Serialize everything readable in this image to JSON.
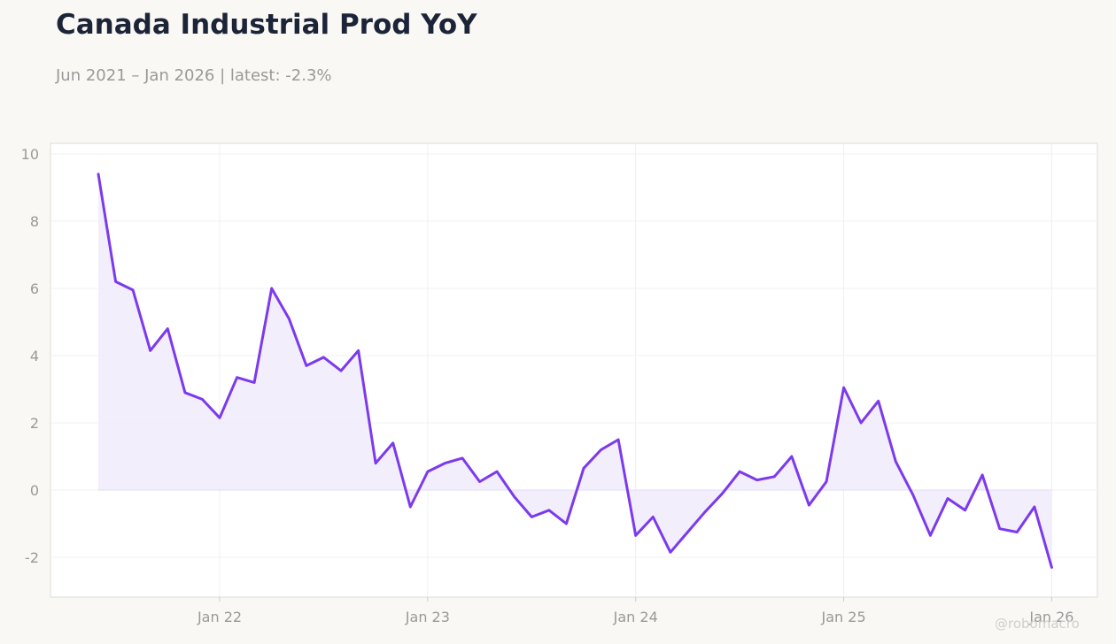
{
  "header": {
    "title": "Canada Industrial Prod YoY",
    "subtitle": "Jun 2021 – Jan 2026 | latest: -2.3%"
  },
  "watermark": "@robomacro",
  "colors": {
    "line": "#7c3aed",
    "fill": "#f0ebfb",
    "background": "#f9f8f5",
    "plot_background": "#ffffff",
    "grid": "#f1f0f0",
    "zero_line": "#e2dcf7"
  },
  "chart_data": {
    "type": "area",
    "title": "Canada Industrial Prod YoY",
    "subtitle": "Jun 2021 – Jan 2026 | latest: -2.3%",
    "xlabel": "",
    "ylabel": "",
    "x_start": "2021-06",
    "x_end": "2026-01",
    "frequency": "monthly",
    "ylim": [
      -3.2,
      10.3
    ],
    "yticks": [
      -2,
      0,
      2,
      4,
      6,
      8,
      10
    ],
    "xticks": [
      {
        "date": "2022-01",
        "label": "Jan 22"
      },
      {
        "date": "2023-01",
        "label": "Jan 23"
      },
      {
        "date": "2024-01",
        "label": "Jan 24"
      },
      {
        "date": "2025-01",
        "label": "Jan 25"
      },
      {
        "date": "2026-01",
        "label": "Jan 26"
      }
    ],
    "grid": true,
    "legend": "none",
    "series": [
      {
        "values": [
          9.4,
          6.2,
          5.95,
          4.15,
          4.8,
          2.9,
          2.7,
          2.15,
          3.35,
          3.2,
          6.0,
          5.1,
          3.7,
          3.95,
          3.55,
          4.15,
          0.8,
          1.4,
          -0.5,
          0.55,
          0.8,
          0.95,
          0.25,
          0.55,
          -0.2,
          -0.8,
          -0.6,
          -1.0,
          0.65,
          1.2,
          1.5,
          -1.35,
          -0.8,
          -1.85,
          -1.25,
          -0.65,
          -0.1,
          0.55,
          0.3,
          0.4,
          1.0,
          -0.45,
          0.25,
          3.05,
          2.0,
          2.65,
          0.85,
          -0.15,
          -1.35,
          -0.25,
          -0.6,
          0.45,
          -1.15,
          -1.25,
          -0.5,
          -2.3
        ]
      }
    ]
  }
}
